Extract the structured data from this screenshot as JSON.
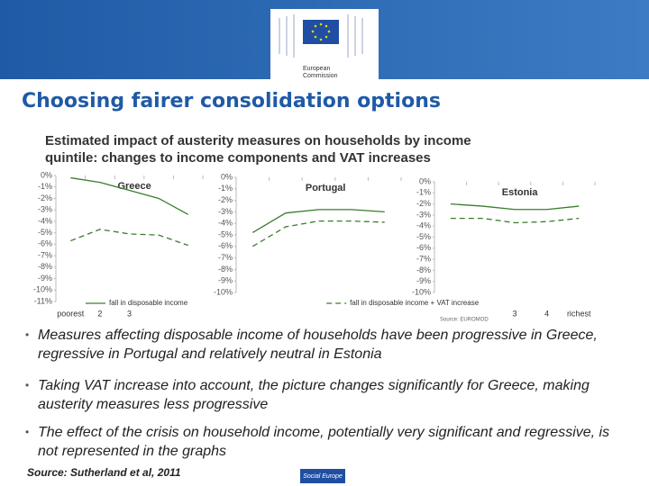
{
  "title": "Choosing fairer consolidation options",
  "chart_heading": [
    "Estimated impact of austerity measures on households by income",
    "quintile: changes to income components and VAT increases"
  ],
  "chart_data": [
    {
      "type": "line",
      "title": "Greece",
      "categories": [
        "poorest",
        "2",
        "3",
        null,
        null
      ],
      "ylim": [
        -11,
        0
      ],
      "yticks": [
        {
          "value": 0,
          "label": "0%"
        },
        {
          "value": -1,
          "label": "-1%"
        },
        {
          "value": -2,
          "label": "-2%"
        },
        {
          "value": -3,
          "label": "-3%"
        },
        {
          "value": -4,
          "label": "-4%"
        },
        {
          "value": -5,
          "label": "-5%"
        },
        {
          "value": -6,
          "label": "-6%"
        },
        {
          "value": -7,
          "label": "-7%"
        },
        {
          "value": -8,
          "label": "-8%"
        },
        {
          "value": -9,
          "label": "-9%"
        },
        {
          "value": -10,
          "label": "-10%"
        },
        {
          "value": -11,
          "label": "-11%"
        }
      ],
      "series": [
        {
          "name": "fall in disposable income",
          "color": "#3a7d2c",
          "dash": false,
          "values": [
            -0.2,
            -0.6,
            -1.3,
            -2.0,
            -3.4
          ]
        },
        {
          "name": "fall in disposable income + VAT increase",
          "color": "#3a7d2c",
          "dash": true,
          "values": [
            -5.7,
            -4.7,
            -5.1,
            -5.2,
            -6.1
          ]
        }
      ]
    },
    {
      "type": "line",
      "title": "Portugal",
      "categories": [
        null,
        null,
        null,
        null,
        null
      ],
      "ylim": [
        -10,
        0
      ],
      "yticks": [
        {
          "value": 0,
          "label": "0%"
        },
        {
          "value": -1,
          "label": "-1%"
        },
        {
          "value": -2,
          "label": "-2%"
        },
        {
          "value": -3,
          "label": "-3%"
        },
        {
          "value": -4,
          "label": "-4%"
        },
        {
          "value": -5,
          "label": "-5%"
        },
        {
          "value": -6,
          "label": "-6%"
        },
        {
          "value": -7,
          "label": "-7%"
        },
        {
          "value": -8,
          "label": "-8%"
        },
        {
          "value": -9,
          "label": "-9%"
        },
        {
          "value": -10,
          "label": "-10%"
        }
      ],
      "series": [
        {
          "name": "fall in disposable income",
          "color": "#3a7d2c",
          "dash": false,
          "values": [
            -4.8,
            -3.1,
            -2.8,
            -2.8,
            -3.0
          ]
        },
        {
          "name": "fall in disposable income + VAT increase",
          "color": "#3a7d2c",
          "dash": true,
          "values": [
            -6.0,
            -4.3,
            -3.8,
            -3.8,
            -3.9
          ]
        }
      ]
    },
    {
      "type": "line",
      "title": "Estonia",
      "categories": [
        null,
        null,
        "3",
        "4",
        "richest"
      ],
      "ylim": [
        -10,
        0
      ],
      "yticks": [
        {
          "value": 0,
          "label": "0%"
        },
        {
          "value": -1,
          "label": "-1%"
        },
        {
          "value": -2,
          "label": "-2%"
        },
        {
          "value": -3,
          "label": "-3%"
        },
        {
          "value": -4,
          "label": "-4%"
        },
        {
          "value": -5,
          "label": "-5%"
        },
        {
          "value": -6,
          "label": "-6%"
        },
        {
          "value": -7,
          "label": "-7%"
        },
        {
          "value": -8,
          "label": "-8%"
        },
        {
          "value": -9,
          "label": "-9%"
        },
        {
          "value": -10,
          "label": "-10%"
        }
      ],
      "series": [
        {
          "name": "fall in disposable income",
          "color": "#3a7d2c",
          "dash": false,
          "values": [
            -2.0,
            -2.2,
            -2.5,
            -2.5,
            -2.2
          ]
        },
        {
          "name": "fall in disposable income + VAT increase",
          "color": "#3a7d2c",
          "dash": true,
          "values": [
            -3.3,
            -3.3,
            -3.7,
            -3.6,
            -3.3
          ]
        }
      ]
    }
  ],
  "chart_source": "Source: EUROMOD",
  "bullets": [
    "Measures affecting disposable income of households have been progressive in Greece, regressive in Portugal and relatively neutral in Estonia",
    "Taking VAT increase into account, the picture changes significantly for Greece, making austerity measures less progressive",
    "The effect of the crisis  on household income, potentially very significant and regressive, is not represented in the graphs"
  ],
  "source": "Source: Sutherland et al, 2011",
  "logo_text": [
    "European",
    "Commission"
  ],
  "footer_logo": "Social Europe"
}
